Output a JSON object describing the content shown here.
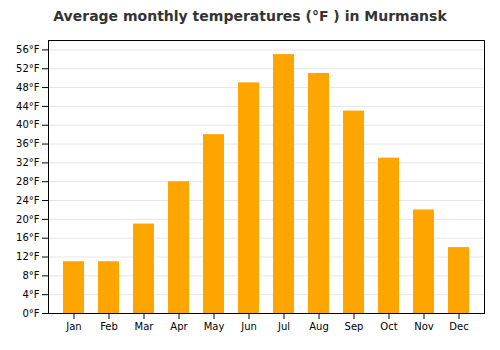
{
  "chart_data": {
    "type": "bar",
    "title": "Average monthly temperatures (°F ) in Murmansk",
    "categories": [
      "Jan",
      "Feb",
      "Mar",
      "Apr",
      "May",
      "Jun",
      "Jul",
      "Aug",
      "Sep",
      "Oct",
      "Nov",
      "Dec"
    ],
    "values": [
      11,
      11,
      19,
      28,
      38,
      49,
      55,
      51,
      43,
      33,
      22,
      14
    ],
    "color": "#FFA500",
    "ylim": [
      0,
      58
    ],
    "yticks": [
      {
        "value": 0,
        "label": "0°F"
      },
      {
        "value": 4,
        "label": "4°F"
      },
      {
        "value": 8,
        "label": "8°F"
      },
      {
        "value": 12,
        "label": "12°F"
      },
      {
        "value": 16,
        "label": "16°F"
      },
      {
        "value": 20,
        "label": "20°F"
      },
      {
        "value": 24,
        "label": "24°F"
      },
      {
        "value": 28,
        "label": "28°F"
      },
      {
        "value": 32,
        "label": "32°F"
      },
      {
        "value": 36,
        "label": "36°F"
      },
      {
        "value": 40,
        "label": "40°F"
      },
      {
        "value": 44,
        "label": "44°F"
      },
      {
        "value": 48,
        "label": "48°F"
      },
      {
        "value": 52,
        "label": "52°F"
      },
      {
        "value": 56,
        "label": "56°F"
      }
    ],
    "grid": true
  }
}
